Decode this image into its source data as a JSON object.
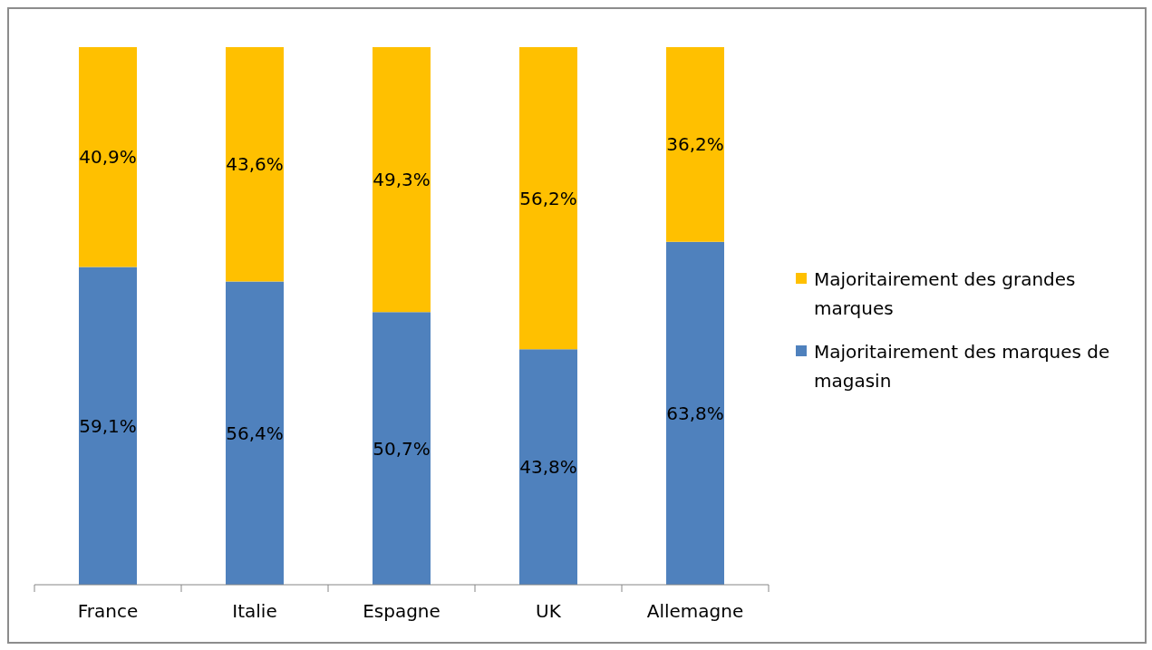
{
  "chart_data": {
    "type": "bar",
    "stacked": true,
    "categories": [
      "France",
      "Italie",
      "Espagne",
      "UK",
      "Allemagne"
    ],
    "series": [
      {
        "name": "Majoritairement des marques de magasin",
        "color": "#4f81bd",
        "values": [
          59.1,
          56.4,
          50.7,
          43.8,
          63.8
        ],
        "value_labels": [
          "59,1%",
          "56,4%",
          "50,7%",
          "43,8%",
          "63,8%"
        ]
      },
      {
        "name": "Majoritairement des grandes marques",
        "color": "#ffc000",
        "values": [
          40.9,
          43.6,
          49.3,
          56.2,
          36.2
        ],
        "value_labels": [
          "40,9%",
          "43,6%",
          "49,3%",
          "56,2%",
          "36,2%"
        ]
      }
    ],
    "legend": "right",
    "grid": false
  }
}
